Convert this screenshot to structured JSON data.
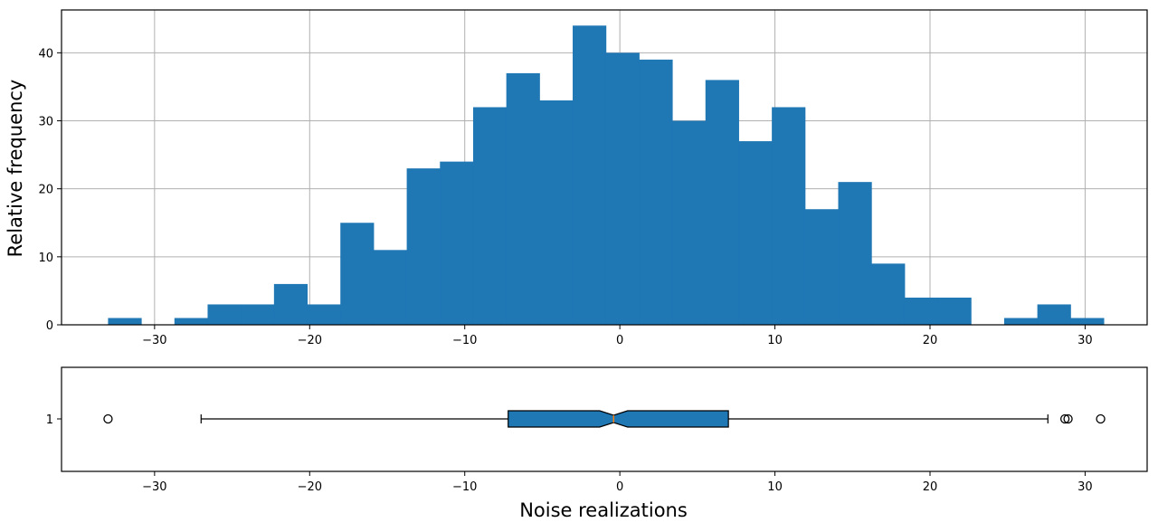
{
  "chart_data": [
    {
      "type": "bar",
      "subtype": "histogram",
      "title": "",
      "xlabel": "",
      "ylabel": "Relative frequency",
      "bar_color": "#1f77b4",
      "grid": true,
      "xlim": [
        -36,
        34
      ],
      "ylim": [
        0,
        46.3
      ],
      "xticks": [
        -30,
        -20,
        -10,
        0,
        10,
        20,
        30
      ],
      "xtick_labels": [
        "−30",
        "−20",
        "−10",
        "0",
        "10",
        "20",
        "30"
      ],
      "yticks": [
        0,
        10,
        20,
        30,
        40
      ],
      "ytick_labels": [
        "0",
        "10",
        "20",
        "30",
        "40"
      ],
      "bin_start": -33.0,
      "bin_width": 2.14,
      "counts": [
        1,
        0,
        1,
        3,
        3,
        6,
        3,
        15,
        11,
        23,
        24,
        32,
        37,
        33,
        44,
        40,
        39,
        30,
        36,
        27,
        32,
        17,
        21,
        9,
        4,
        4,
        0,
        1,
        3,
        1
      ]
    },
    {
      "type": "boxplot",
      "orientation": "horizontal",
      "notched": true,
      "xlabel": "Noise realizations",
      "box_color": "#1f77b4",
      "median_color": "#ff7f0e",
      "xlim": [
        -36,
        34
      ],
      "xticks": [
        -30,
        -20,
        -10,
        0,
        10,
        20,
        30
      ],
      "xtick_labels": [
        "−30",
        "−20",
        "−10",
        "0",
        "10",
        "20",
        "30"
      ],
      "ytick_labels": [
        "1"
      ],
      "whisker_low": -27.0,
      "q1": -7.2,
      "notch_low": -1.3,
      "median": -0.4,
      "notch_high": 0.5,
      "q3": 7.0,
      "whisker_high": 27.6,
      "outliers": [
        -33.0,
        28.7,
        28.9,
        31.0
      ]
    }
  ]
}
